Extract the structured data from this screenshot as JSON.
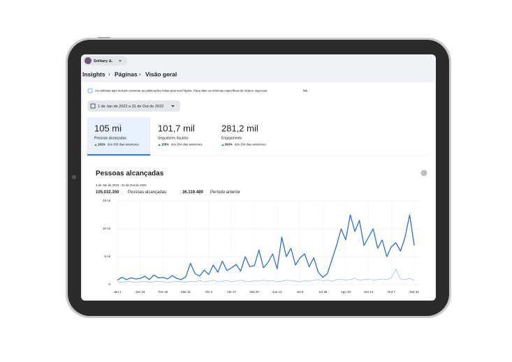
{
  "header": {
    "account": "Solitary Δ."
  },
  "breadcrumb": [
    "Insights",
    "Páginas",
    "Visão geral"
  ],
  "info": {
    "text": "As métricas aqui incluem somente as publicações feitas pela sua Página. Para obter as métricas específicas de vídeos, siga este",
    "link": "link."
  },
  "date_range": "1 de Jan de 2022 a 31 de Out de 2022",
  "metrics": [
    {
      "value": "105 mi",
      "label": "Pessoas alcançadas",
      "change": "191%",
      "note": "dos 306 dias anteriores"
    },
    {
      "value": "101,7 mil",
      "label": "Seguidores líquidos",
      "change": "155%",
      "note": "dos 304 dias anteriores"
    },
    {
      "value": "281,2 mil",
      "label": "Engajamento",
      "change": "893%",
      "note": "dos 304 dias anteriores"
    }
  ],
  "chart_data": {
    "type": "line",
    "title": "Pessoas alcançadas",
    "subtitle": "1 de Jan de 2022 - 31 de Out de 2022",
    "summary": [
      {
        "value": "105.032.350",
        "label": "Pessoas alcançadas"
      },
      {
        "value": "36.119.489",
        "label": "Período anterior"
      }
    ],
    "categories": [
      "Jan 1",
      null,
      null,
      null,
      null,
      "Jan 24",
      null,
      null,
      null,
      null,
      "Fev 16",
      null,
      null,
      null,
      null,
      "Mar 11",
      null,
      null,
      null,
      null,
      "Abr 4",
      null,
      null,
      null,
      null,
      "Abr 27",
      null,
      null,
      null,
      null,
      "Mai 20",
      null,
      null,
      null,
      null,
      "Jun 12",
      null,
      null,
      null,
      null,
      "Jul 5",
      null,
      null,
      null,
      null,
      "Jul 28",
      null,
      null,
      null,
      null,
      "Ago 20",
      null,
      null,
      null,
      null,
      "Set 14",
      null,
      null,
      null,
      null,
      "Out 7",
      null,
      null,
      null,
      null,
      "Out 31"
    ],
    "series": [
      {
        "name": "Pessoas alcançadas",
        "color": "#2d6fd2",
        "values": [
          0.8,
          1.3,
          0.9,
          1.2,
          1.0,
          1.1,
          1.5,
          0.9,
          1.7,
          1.2,
          1.3,
          1.0,
          1.6,
          1.1,
          0.9,
          1.4,
          3.8,
          2.0,
          1.5,
          2.6,
          1.8,
          3.5,
          2.2,
          4.2,
          2.5,
          3.0,
          3.6,
          2.4,
          5.0,
          3.2,
          3.4,
          6.2,
          3.0,
          4.0,
          5.5,
          2.8,
          8.5,
          5.0,
          6.5,
          3.5,
          4.8,
          5.5,
          3.2,
          4.8,
          2.2,
          1.3,
          2.0,
          4.5,
          7.0,
          10.0,
          8.0,
          12.5,
          9.5,
          11.5,
          7.0,
          8.5,
          10.0,
          6.5,
          8.0,
          5.0,
          6.8,
          7.5,
          6.0,
          8.5,
          12.5,
          7.0
        ]
      },
      {
        "name": "Período anterior",
        "color": "#a9bfdc",
        "values": [
          0.5,
          0.4,
          0.6,
          0.5,
          0.4,
          0.5,
          0.6,
          0.4,
          0.5,
          0.6,
          0.5,
          0.4,
          0.5,
          0.6,
          0.5,
          0.4,
          0.6,
          0.5,
          0.7,
          0.5,
          0.6,
          0.8,
          0.5,
          0.6,
          0.7,
          0.5,
          0.6,
          0.8,
          0.6,
          0.5,
          0.7,
          0.6,
          0.8,
          0.6,
          0.7,
          0.5,
          0.6,
          0.8,
          0.7,
          0.6,
          0.5,
          0.7,
          0.6,
          0.8,
          0.9,
          0.7,
          0.8,
          0.6,
          0.9,
          1.0,
          0.8,
          0.9,
          1.1,
          0.8,
          0.9,
          1.0,
          0.8,
          0.9,
          1.0,
          0.9,
          1.2,
          2.8,
          1.0,
          0.9,
          1.1,
          0.8
        ]
      }
    ],
    "ylim": [
      0,
      15
    ],
    "yticks": [
      0,
      {
        "value": 5,
        "label": "5 mi"
      },
      {
        "value": 10,
        "label": "10 mi"
      },
      {
        "value": 15,
        "label": "15 mi"
      }
    ],
    "grid": true
  }
}
